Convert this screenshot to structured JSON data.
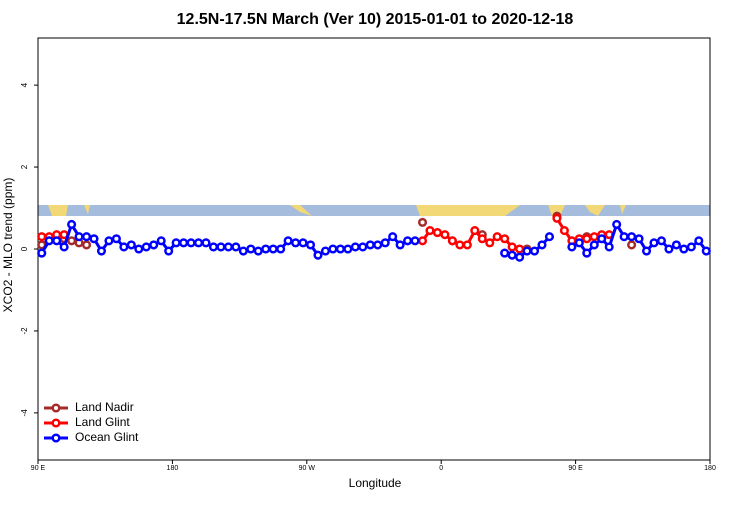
{
  "chart_data": {
    "type": "line",
    "title": "12.5N-17.5N March (Ver 10)   2015-01-01 to 2020-12-18",
    "x_label": "Longitude",
    "y_label": "XCO2 - MLO trend (ppm)",
    "xlim": [
      90,
      540
    ],
    "ylim": [
      -5.15,
      5.15
    ],
    "xticks": [
      {
        "value": 90,
        "label": "90 E"
      },
      {
        "value": 180,
        "label": "180"
      },
      {
        "value": 270,
        "label": "90 W"
      },
      {
        "value": 360,
        "label": "0"
      },
      {
        "value": 450,
        "label": "90 E"
      },
      {
        "value": 540,
        "label": "180"
      }
    ],
    "yticks": [
      -4,
      -2,
      0,
      2,
      4
    ],
    "legend": "bottom-left",
    "x": [
      92.5,
      97.5,
      102.5,
      107.5,
      112.5,
      117.5,
      122.5,
      127.5,
      132.5,
      137.5,
      142.5,
      147.5,
      152.5,
      157.5,
      162.5,
      167.5,
      172.5,
      177.5,
      182.5,
      187.5,
      192.5,
      197.5,
      202.5,
      207.5,
      212.5,
      217.5,
      222.5,
      227.5,
      232.5,
      237.5,
      242.5,
      247.5,
      252.5,
      257.5,
      262.5,
      267.5,
      272.5,
      277.5,
      282.5,
      287.5,
      292.5,
      297.5,
      302.5,
      307.5,
      312.5,
      317.5,
      322.5,
      327.5,
      332.5,
      337.5,
      342.5,
      347.5,
      352.5,
      357.5,
      362.5,
      367.5,
      372.5,
      377.5,
      382.5,
      387.5,
      392.5,
      397.5,
      402.5,
      407.5,
      412.5,
      417.5,
      422.5,
      427.5,
      432.5,
      437.5,
      442.5,
      447.5,
      452.5,
      457.5,
      462.5,
      467.5,
      472.5,
      477.5,
      482.5,
      487.5,
      492.5,
      497.5,
      502.5,
      507.5,
      512.5,
      517.5,
      522.5,
      527.5,
      532.5,
      537.5
    ],
    "series": [
      {
        "name": "Land Nadir",
        "color": "#a52a2a",
        "values": [
          0.1,
          0.25,
          0.25,
          0.25,
          0.2,
          0.15,
          0.1,
          null,
          null,
          null,
          null,
          null,
          null,
          null,
          null,
          null,
          null,
          null,
          null,
          null,
          null,
          null,
          null,
          null,
          null,
          null,
          null,
          null,
          null,
          null,
          null,
          null,
          null,
          null,
          null,
          null,
          null,
          null,
          null,
          null,
          null,
          null,
          null,
          null,
          null,
          null,
          null,
          null,
          null,
          null,
          null,
          0.65,
          null,
          null,
          null,
          0.2,
          null,
          null,
          null,
          0.35,
          null,
          null,
          null,
          null,
          null,
          0.0,
          null,
          null,
          null,
          0.8,
          null,
          null,
          null,
          0.3,
          null,
          null,
          null,
          null,
          null,
          0.1,
          null,
          null,
          null,
          null,
          null,
          null,
          null,
          null,
          null,
          null
        ]
      },
      {
        "name": "Land Glint",
        "color": "#ff0000",
        "values": [
          0.3,
          0.3,
          0.35,
          0.35,
          null,
          null,
          null,
          null,
          null,
          null,
          null,
          null,
          null,
          null,
          null,
          null,
          null,
          null,
          null,
          null,
          null,
          null,
          null,
          null,
          null,
          null,
          null,
          null,
          null,
          null,
          null,
          null,
          null,
          null,
          null,
          null,
          null,
          null,
          null,
          null,
          null,
          null,
          null,
          null,
          null,
          null,
          null,
          null,
          null,
          null,
          null,
          0.2,
          0.45,
          0.4,
          0.35,
          0.2,
          0.1,
          0.1,
          0.45,
          0.25,
          0.15,
          0.3,
          0.25,
          0.05,
          0.0,
          null,
          null,
          null,
          null,
          0.75,
          0.45,
          0.2,
          0.25,
          0.25,
          0.3,
          0.35,
          0.35,
          null,
          null,
          null,
          null,
          null,
          null,
          null,
          null,
          null,
          null,
          null,
          null,
          null
        ]
      },
      {
        "name": "Ocean Glint",
        "color": "#0000ff",
        "values": [
          -0.1,
          0.2,
          0.2,
          0.05,
          0.6,
          0.3,
          0.3,
          0.25,
          -0.05,
          0.2,
          0.25,
          0.05,
          0.1,
          0.0,
          0.05,
          0.1,
          0.2,
          -0.05,
          0.15,
          0.15,
          0.15,
          0.15,
          0.15,
          0.05,
          0.05,
          0.05,
          0.05,
          -0.05,
          0.0,
          -0.05,
          0.0,
          0.0,
          0.0,
          0.2,
          0.15,
          0.15,
          0.1,
          -0.15,
          -0.05,
          0.0,
          0.0,
          0.0,
          0.05,
          0.05,
          0.1,
          0.1,
          0.15,
          0.3,
          0.1,
          0.2,
          0.2,
          null,
          null,
          null,
          null,
          null,
          null,
          null,
          null,
          null,
          null,
          null,
          -0.1,
          -0.15,
          -0.2,
          -0.05,
          -0.05,
          0.1,
          0.3,
          null,
          null,
          0.05,
          0.15,
          -0.1,
          0.1,
          0.25,
          0.05,
          0.6,
          0.3,
          0.3,
          0.25,
          -0.05,
          0.15,
          0.2,
          0.0,
          0.1,
          0.0,
          0.05,
          0.2,
          -0.05
        ]
      }
    ]
  }
}
